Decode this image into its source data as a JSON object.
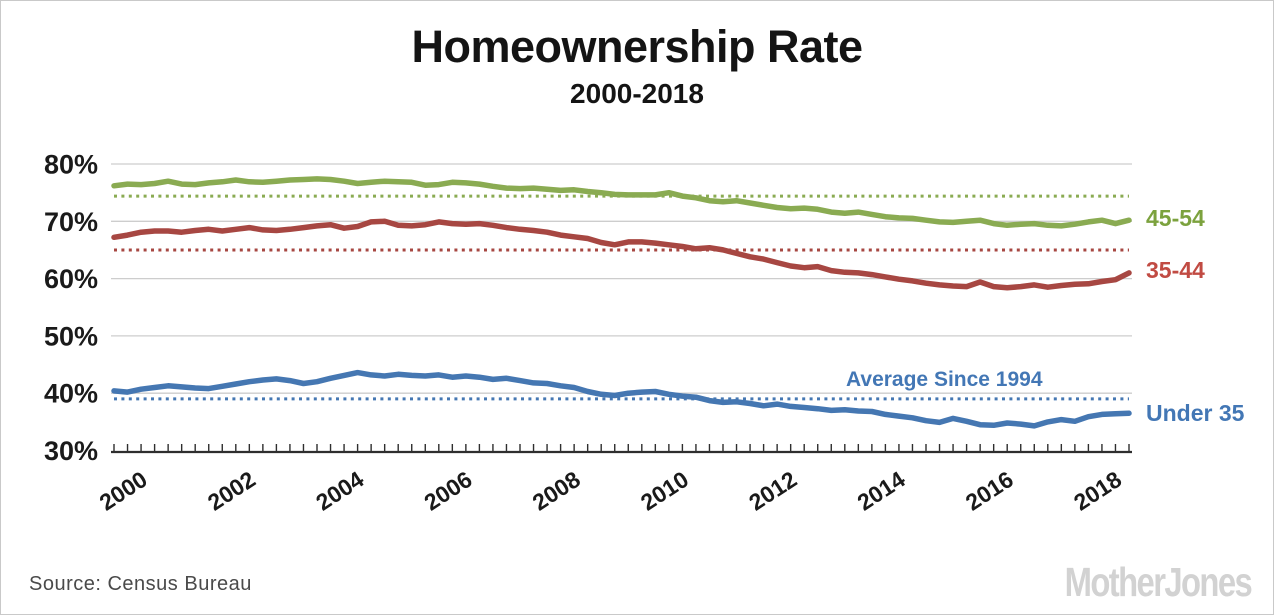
{
  "header": {
    "title": "Homeownership Rate",
    "subtitle": "2000-2018"
  },
  "footer": {
    "source": "Source: Census Bureau",
    "logo": "MotherJones"
  },
  "chart_data": {
    "type": "line",
    "title": "Homeownership Rate",
    "subtitle": "2000-2018",
    "x_unit": "quarter",
    "x_start_year": 2000,
    "x_end_year": 2018,
    "points_per_year": 4,
    "x_tick_years": [
      2000,
      2002,
      2004,
      2006,
      2008,
      2010,
      2012,
      2014,
      2016,
      2018
    ],
    "ylim": [
      30,
      80
    ],
    "grid": "horizontal",
    "y_ticks": [
      {
        "label": "80%",
        "value": 80
      },
      {
        "label": "70%",
        "value": 70
      },
      {
        "label": "60%",
        "value": 60
      },
      {
        "label": "50%",
        "value": 50
      },
      {
        "label": "40%",
        "value": 40
      },
      {
        "label": "30%",
        "value": 30
      }
    ],
    "annotation": {
      "text": "Average Since 1994",
      "color": "#4377B5",
      "applies_to": "Under 35"
    },
    "reference_line_style": "dotted",
    "series": [
      {
        "name": "45-54",
        "color": "#8AAB52",
        "label_color": "#7CA23E",
        "average_since_1994": 74.4,
        "values": [
          76.2,
          76.5,
          76.4,
          76.6,
          77.0,
          76.5,
          76.4,
          76.7,
          76.9,
          77.2,
          76.9,
          76.8,
          77.0,
          77.2,
          77.3,
          77.4,
          77.3,
          77.0,
          76.6,
          76.8,
          77.0,
          76.9,
          76.8,
          76.3,
          76.4,
          76.8,
          76.7,
          76.5,
          76.1,
          75.8,
          75.7,
          75.8,
          75.6,
          75.4,
          75.5,
          75.2,
          75.0,
          74.7,
          74.6,
          74.6,
          74.6,
          75.0,
          74.4,
          74.1,
          73.6,
          73.4,
          73.6,
          73.2,
          72.8,
          72.4,
          72.2,
          72.3,
          72.1,
          71.6,
          71.4,
          71.6,
          71.2,
          70.8,
          70.6,
          70.5,
          70.2,
          69.9,
          69.8,
          70.0,
          70.2,
          69.6,
          69.3,
          69.5,
          69.6,
          69.3,
          69.2,
          69.5,
          69.9,
          70.2,
          69.6,
          70.2
        ]
      },
      {
        "name": "35-44",
        "color": "#A74742",
        "label_color": "#C14B43",
        "average_since_1994": 65.0,
        "values": [
          67.2,
          67.6,
          68.1,
          68.3,
          68.3,
          68.1,
          68.4,
          68.6,
          68.3,
          68.6,
          68.9,
          68.5,
          68.4,
          68.6,
          68.9,
          69.2,
          69.4,
          68.8,
          69.1,
          69.9,
          70.0,
          69.3,
          69.2,
          69.4,
          69.9,
          69.6,
          69.5,
          69.6,
          69.3,
          68.9,
          68.6,
          68.4,
          68.1,
          67.6,
          67.3,
          67.0,
          66.3,
          65.9,
          66.4,
          66.4,
          66.2,
          65.9,
          65.6,
          65.2,
          65.4,
          65.0,
          64.4,
          63.8,
          63.4,
          62.8,
          62.2,
          61.9,
          62.1,
          61.4,
          61.1,
          61.0,
          60.7,
          60.3,
          59.9,
          59.6,
          59.2,
          58.9,
          58.7,
          58.6,
          59.4,
          58.6,
          58.4,
          58.6,
          58.9,
          58.5,
          58.8,
          59.0,
          59.1,
          59.5,
          59.8,
          61.0
        ]
      },
      {
        "name": "Under 35",
        "color": "#4577B2",
        "label_color": "#4377B5",
        "average_since_1994": 39.0,
        "values": [
          40.4,
          40.2,
          40.7,
          41.0,
          41.3,
          41.1,
          40.9,
          40.8,
          41.2,
          41.6,
          42.0,
          42.3,
          42.5,
          42.2,
          41.7,
          42.0,
          42.6,
          43.1,
          43.6,
          43.2,
          43.0,
          43.3,
          43.1,
          43.0,
          43.2,
          42.8,
          43.0,
          42.8,
          42.4,
          42.6,
          42.2,
          41.8,
          41.7,
          41.3,
          41.0,
          40.3,
          39.8,
          39.6,
          40.0,
          40.2,
          40.3,
          39.8,
          39.5,
          39.3,
          38.7,
          38.4,
          38.5,
          38.2,
          37.8,
          38.1,
          37.7,
          37.5,
          37.3,
          37.0,
          37.1,
          36.9,
          36.8,
          36.3,
          36.0,
          35.7,
          35.2,
          34.9,
          35.6,
          35.1,
          34.5,
          34.4,
          34.8,
          34.6,
          34.3,
          35.0,
          35.4,
          35.1,
          35.9,
          36.3,
          36.4,
          36.5
        ]
      }
    ]
  }
}
